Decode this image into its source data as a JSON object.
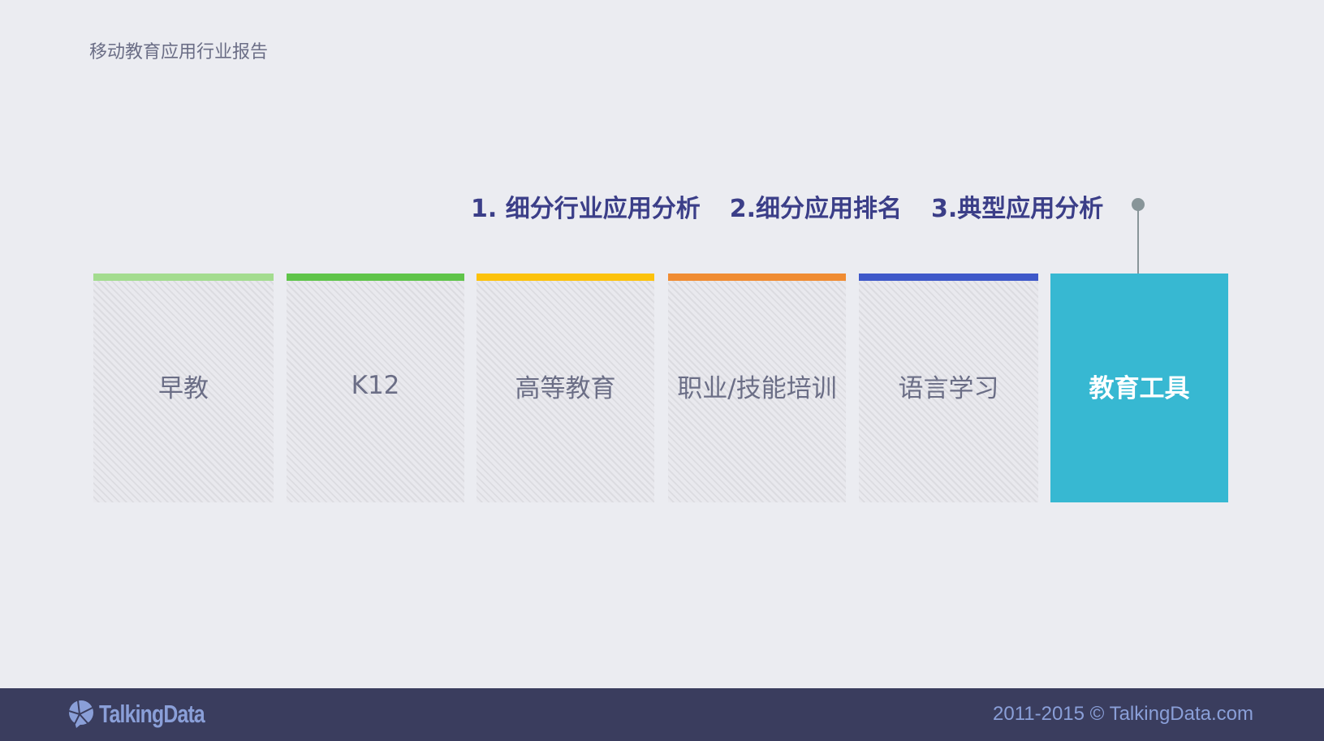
{
  "header": {
    "title": "移动教育应用行业报告"
  },
  "nav": {
    "items": [
      {
        "label": "1. 细分行业应用分析"
      },
      {
        "label": "2.细分应用排名"
      },
      {
        "label": "3.典型应用分析"
      }
    ]
  },
  "categories": [
    {
      "label": "早教",
      "color": "#a3dc8f",
      "active": false
    },
    {
      "label": "K12",
      "color": "#5fc44a",
      "active": false
    },
    {
      "label": "高等教育",
      "color": "#fcc20c",
      "active": false
    },
    {
      "label": "职业/技能培训",
      "color": "#f08c32",
      "active": false
    },
    {
      "label": "语言学习",
      "color": "#3e58c9",
      "active": false
    },
    {
      "label": "教育工具",
      "color": "#37b8d2",
      "active": true
    }
  ],
  "footer": {
    "logo": "TalkingData",
    "copyright": "2011-2015 © TalkingData.com"
  }
}
